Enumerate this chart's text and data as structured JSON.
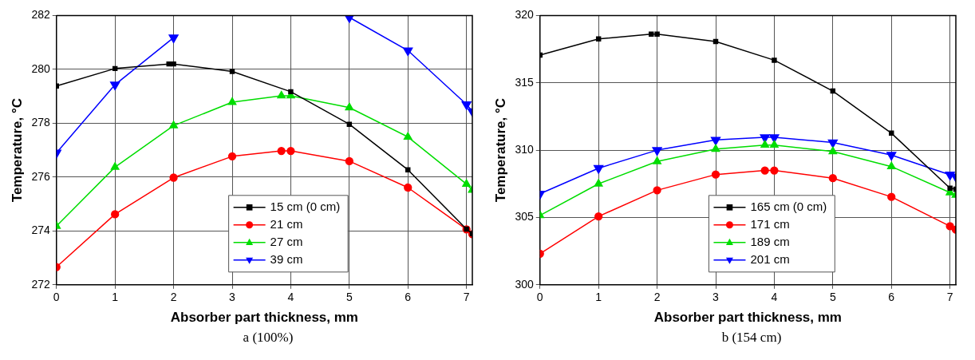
{
  "chart_data": [
    {
      "type": "line",
      "xlabel": "Absorber part thickness, mm",
      "ylabel": "Temperature, °C",
      "xlim": [
        0,
        7.1
      ],
      "xticks": [
        0,
        1,
        2,
        3,
        4,
        5,
        6,
        7
      ],
      "ylim": [
        272,
        282
      ],
      "yticks": [
        272,
        274,
        276,
        278,
        280,
        282
      ],
      "grid": true,
      "legend": "bottom",
      "annotations": [
        "a (100%)"
      ],
      "series": [
        {
          "name": "15 cm (0 cm)",
          "color": "#000000",
          "marker": "square",
          "x": [
            0,
            1,
            1.92,
            2,
            3,
            4,
            5,
            6,
            7,
            7.1
          ],
          "values": [
            279.38,
            280.03,
            280.2,
            280.2,
            279.92,
            279.17,
            277.96,
            276.27,
            274.07,
            273.9
          ]
        },
        {
          "name": "21 cm",
          "color": "#ff0000",
          "marker": "circle",
          "x": [
            0,
            1,
            2,
            3,
            3.84,
            4,
            5,
            6,
            7,
            7.1
          ],
          "values": [
            272.66,
            274.62,
            275.98,
            276.77,
            276.97,
            276.97,
            276.59,
            275.61,
            274.06,
            273.88
          ]
        },
        {
          "name": "27 cm",
          "color": "#00dd00",
          "marker": "triangle",
          "x": [
            0,
            1,
            2,
            3,
            3.84,
            4,
            5,
            6,
            7,
            7.1
          ],
          "values": [
            274.18,
            276.37,
            277.91,
            278.78,
            279.02,
            279.02,
            278.58,
            277.49,
            275.74,
            275.52
          ]
        },
        {
          "name": "39 cm",
          "color": "#0000ff",
          "marker": "triangle-down",
          "x": [
            0,
            1,
            2,
            3,
            3.84,
            4,
            5,
            6,
            7,
            7.1
          ],
          "values": [
            276.9,
            279.43,
            281.18,
            null,
            null,
            null,
            281.93,
            280.7,
            278.7,
            278.44
          ]
        }
      ]
    },
    {
      "type": "line",
      "xlabel": "Absorber part thickness, mm",
      "ylabel": "Temperature, °C",
      "xlim": [
        0,
        7.1
      ],
      "xticks": [
        0,
        1,
        2,
        3,
        4,
        5,
        6,
        7
      ],
      "ylim": [
        300,
        320
      ],
      "yticks": [
        300,
        305,
        310,
        315,
        320
      ],
      "grid": true,
      "legend": "bottom",
      "annotations": [
        "b (154 cm)"
      ],
      "series": [
        {
          "name": "165 cm (0 cm)",
          "color": "#000000",
          "marker": "square",
          "x": [
            0,
            1,
            1.9,
            2,
            3,
            4,
            5,
            6,
            7,
            7.1
          ],
          "values": [
            317.06,
            318.26,
            318.61,
            318.61,
            318.07,
            316.68,
            314.39,
            311.26,
            307.18,
            307.1
          ]
        },
        {
          "name": "171 cm",
          "color": "#ff0000",
          "marker": "circle",
          "x": [
            0,
            1,
            2,
            3,
            3.84,
            4,
            5,
            6,
            7,
            7.1
          ],
          "values": [
            302.31,
            305.08,
            307.02,
            308.19,
            308.49,
            308.49,
            307.92,
            306.53,
            304.35,
            304.1
          ]
        },
        {
          "name": "189 cm",
          "color": "#00dd00",
          "marker": "triangle",
          "x": [
            0,
            1,
            2,
            3,
            3.84,
            4,
            5,
            6,
            7,
            7.1
          ],
          "values": [
            305.15,
            307.5,
            309.16,
            310.08,
            310.38,
            310.38,
            309.9,
            308.78,
            306.85,
            306.66
          ]
        },
        {
          "name": "201 cm",
          "color": "#0000ff",
          "marker": "triangle-down",
          "x": [
            0,
            1,
            2,
            3,
            3.84,
            4,
            5,
            6,
            7,
            7.1
          ],
          "values": [
            306.76,
            308.66,
            310,
            310.76,
            310.95,
            310.95,
            310.57,
            309.64,
            308.17,
            308.03
          ]
        }
      ]
    }
  ]
}
